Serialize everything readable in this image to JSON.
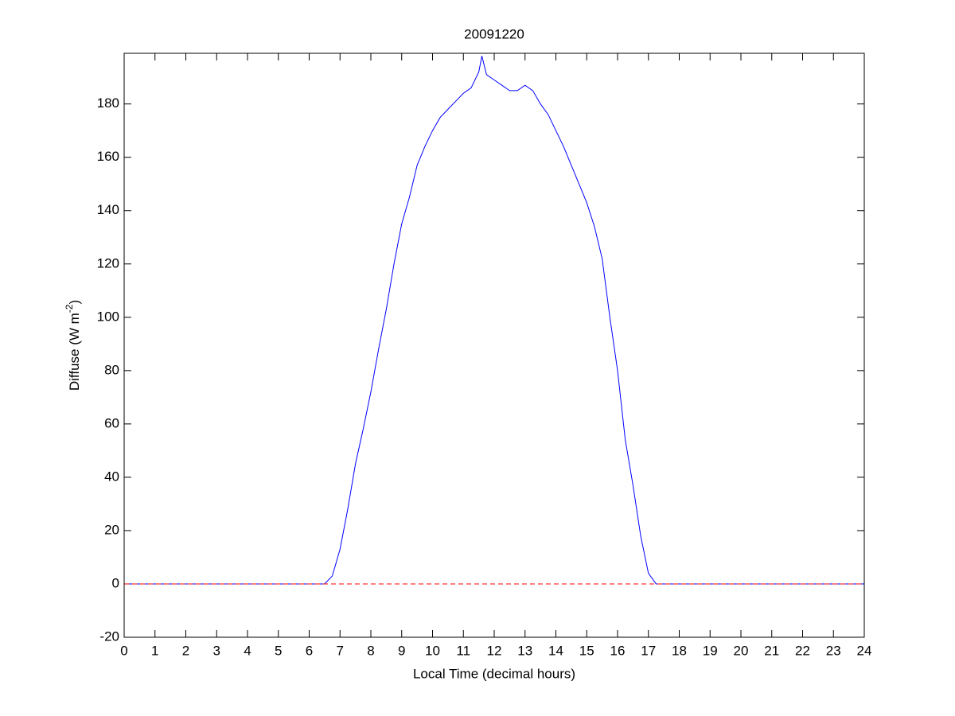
{
  "chart_data": {
    "type": "line",
    "title": "20091220",
    "xlabel": "Local Time (decimal hours)",
    "ylabel_parts": [
      "Diffuse (W m",
      "-2",
      ")"
    ],
    "x": [
      0,
      1,
      2,
      3,
      4,
      5,
      6,
      6.5,
      6.75,
      7,
      7.25,
      7.5,
      7.75,
      8,
      8.25,
      8.5,
      8.75,
      9,
      9.25,
      9.5,
      9.75,
      10,
      10.25,
      10.5,
      10.75,
      11,
      11.25,
      11.5,
      11.6,
      11.75,
      12,
      12.25,
      12.5,
      12.75,
      13,
      13.25,
      13.5,
      13.75,
      14,
      14.25,
      14.5,
      14.75,
      15,
      15.25,
      15.5,
      15.75,
      16,
      16.25,
      16.5,
      16.75,
      17,
      17.25,
      18,
      19,
      20,
      21,
      22,
      23,
      24
    ],
    "series": [
      {
        "color": "#0000ff",
        "values": [
          0,
          0,
          0,
          0,
          0,
          0,
          0,
          0,
          3,
          13,
          28,
          45,
          58,
          72,
          88,
          103,
          120,
          135,
          145,
          157,
          164,
          170,
          175,
          178,
          181,
          184,
          186,
          192,
          198,
          191,
          189,
          187,
          185,
          185,
          187,
          185,
          180,
          176,
          170,
          164,
          157,
          150,
          143,
          134,
          122,
          100,
          80,
          54,
          37,
          18,
          4,
          0,
          0,
          0,
          0,
          0,
          0,
          0,
          0
        ]
      }
    ],
    "reference_line": {
      "value": 0,
      "color": "#ff0000",
      "style": "dashed"
    },
    "xlim": [
      0,
      24
    ],
    "xticks": [
      0,
      1,
      2,
      3,
      4,
      5,
      6,
      7,
      8,
      9,
      10,
      11,
      12,
      13,
      14,
      15,
      16,
      17,
      18,
      19,
      20,
      21,
      22,
      23,
      24
    ],
    "ylim": [
      -20,
      199
    ],
    "yticks": [
      -20,
      0,
      20,
      40,
      60,
      80,
      100,
      120,
      140,
      160,
      180
    ],
    "grid": false
  }
}
